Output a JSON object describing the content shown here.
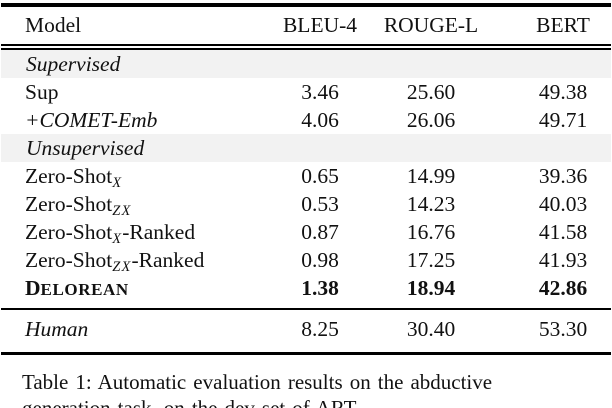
{
  "table": {
    "columns": [
      "Model",
      "BLEU-4",
      "ROUGE-L",
      "BERT"
    ],
    "rows": [
      {
        "type": "section",
        "label": "Supervised"
      },
      {
        "type": "data",
        "model": {
          "main": "Sup"
        },
        "values": [
          "3.46",
          "25.60",
          "49.38"
        ]
      },
      {
        "type": "data",
        "model": {
          "main": "+COMET-Emb",
          "style": "italic"
        },
        "values": [
          "4.06",
          "26.06",
          "49.71"
        ]
      },
      {
        "type": "section",
        "label": "Unsupervised"
      },
      {
        "type": "data",
        "model": {
          "main": "Zero-Shot",
          "sub": "X"
        },
        "values": [
          "0.65",
          "14.99",
          "39.36"
        ]
      },
      {
        "type": "data",
        "model": {
          "main": "Zero-Shot",
          "sub": "ZX"
        },
        "values": [
          "0.53",
          "14.23",
          "40.03"
        ]
      },
      {
        "type": "data",
        "model": {
          "main": "Zero-Shot",
          "sub": "X",
          "suffix": "-Ranked"
        },
        "values": [
          "0.87",
          "16.76",
          "41.58"
        ]
      },
      {
        "type": "data",
        "model": {
          "main": "Zero-Shot",
          "sub": "ZX",
          "suffix": "-Ranked"
        },
        "values": [
          "0.98",
          "17.25",
          "41.93"
        ]
      },
      {
        "type": "data",
        "model": {
          "main": "Delorean",
          "style": "smallcaps"
        },
        "bold": true,
        "values": [
          "1.38",
          "18.94",
          "42.86"
        ]
      },
      {
        "type": "divider"
      },
      {
        "type": "data",
        "model": {
          "main": "Human",
          "style": "italic"
        },
        "values": [
          "8.25",
          "30.40",
          "53.30"
        ]
      }
    ]
  },
  "caption": {
    "line1": "Table 1: Automatic evaluation results on the abductive",
    "line2": "generation task, on the dev set of ART."
  },
  "colors": {
    "section_bg": "#f2f2f2",
    "text": "#111111",
    "rule": "#000000"
  }
}
